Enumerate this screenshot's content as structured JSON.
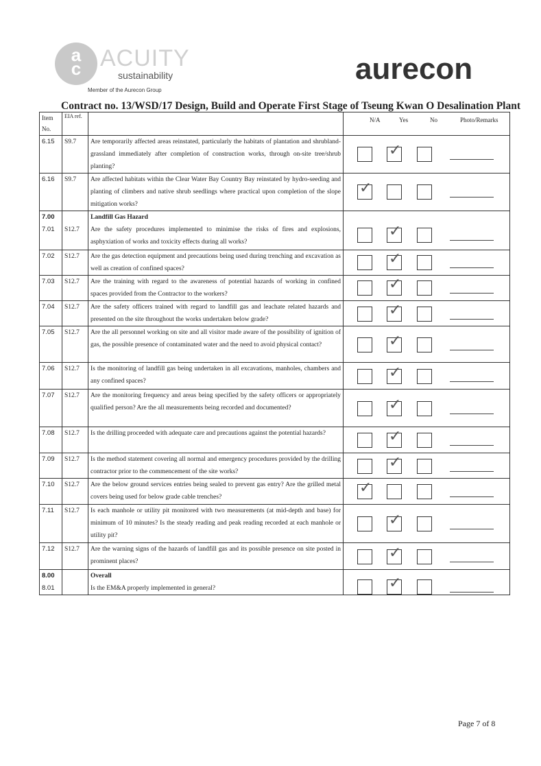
{
  "header": {
    "logo_left": {
      "mark": "acs",
      "name": "ACUITY",
      "tagline": "sustainability",
      "member": "Member of the Aurecon Group"
    },
    "logo_right": "aurecon",
    "title": "Contract no.  13/WSD/17 Design, Build and Operate First Stage of Tseung Kwan O Desalination Plant"
  },
  "table": {
    "columns": {
      "item": "Item No.",
      "eia": "EIA ref.",
      "na": "N/A",
      "yes": "Yes",
      "no": "No",
      "remarks": "Photo/Remarks"
    },
    "rows": [
      {
        "item": "6.15",
        "eia": "S9.7",
        "question": "Are temporarily affected areas reinstated, particularly the habitats of plantation and shrubland-grassland immediately after completion of construction works, through on-site tree/shrub planting?",
        "answer": "yes"
      },
      {
        "item": "6.16",
        "eia": "S9.7",
        "question": "Are affected habitats within the Clear Water Bay Country Bay reinstated by hydro-seeding and planting of climbers and native shrub seedlings where practical upon completion of the slope mitigation works?",
        "answer": "na"
      },
      {
        "section_item": "7.00",
        "section": "Landfill Gas Hazard",
        "item": "7.01",
        "eia": "S12.7",
        "question": "Are the safety procedures implemented to minimise the risks of fires and explosions, asphyxiation of works and toxicity effects during all works?",
        "answer": "yes"
      },
      {
        "item": "7.02",
        "eia": "S12.7",
        "question": "Are the gas detection equipment and precautions being used during trenching and excavation as well as creation of confined spaces?",
        "answer": "yes"
      },
      {
        "item": "7.03",
        "eia": "S12.7",
        "question": "Are the training with regard to the awareness of potential hazards of working in confined spaces provided from the Contractor to the workers?",
        "answer": "yes"
      },
      {
        "item": "7.04",
        "eia": "S12.7",
        "question": "Are the safety officers trained with regard to landfill gas and leachate related hazards and presented on the site throughout the works undertaken below grade?",
        "answer": "yes"
      },
      {
        "item": "7.05",
        "eia": "S12.7",
        "question": "Are the all personnel working on site and all visitor made aware of the possibility of ignition of gas, the possible presence of contaminated water and the need to avoid physical contact?",
        "answer": "yes"
      },
      {
        "item": "7.06",
        "eia": "S12.7",
        "question": "Is the monitoring of landfill gas being undertaken in all excavations, manholes, chambers and any confined spaces?",
        "answer": "yes"
      },
      {
        "item": "7.07",
        "eia": "S12.7",
        "question": "Are the monitoring frequency and areas being specified by the safety officers or appropriately qualified person? Are the all measurements being recorded and documented?",
        "answer": "yes"
      },
      {
        "item": "7.08",
        "eia": "S12.7",
        "question": "Is the drilling proceeded with adequate care and precautions against the potential hazards?",
        "answer": "yes"
      },
      {
        "item": "7.09",
        "eia": "S12.7",
        "question": "Is the method statement covering all normal and emergency procedures provided by the drilling contractor prior to the commencement of the site works?",
        "answer": "yes"
      },
      {
        "item": "7.10",
        "eia": "S12.7",
        "question": "Are the below ground services entries being sealed to prevent gas entry? Are the grilled metal covers being used for below grade cable trenches?",
        "answer": "na"
      },
      {
        "item": "7.11",
        "eia": "S12.7",
        "question": "Is each manhole or utility pit monitored with two measurements (at mid-depth and base) for minimum of 10 minutes? Is the steady reading and peak reading recorded at each manhole or utility pit?",
        "answer": "yes"
      },
      {
        "item": "7.12",
        "eia": "S12.7",
        "question": "Are the warning signs of the hazards of landfill gas and its possible presence on site posted in prominent places?",
        "answer": "yes"
      },
      {
        "section_item": "8.00",
        "section": "Overall",
        "item": "8.01",
        "eia": "",
        "question": "Is the EM&A properly implemented in general?",
        "answer": "yes"
      }
    ]
  },
  "footer": {
    "page": "Page 7 of 8"
  }
}
